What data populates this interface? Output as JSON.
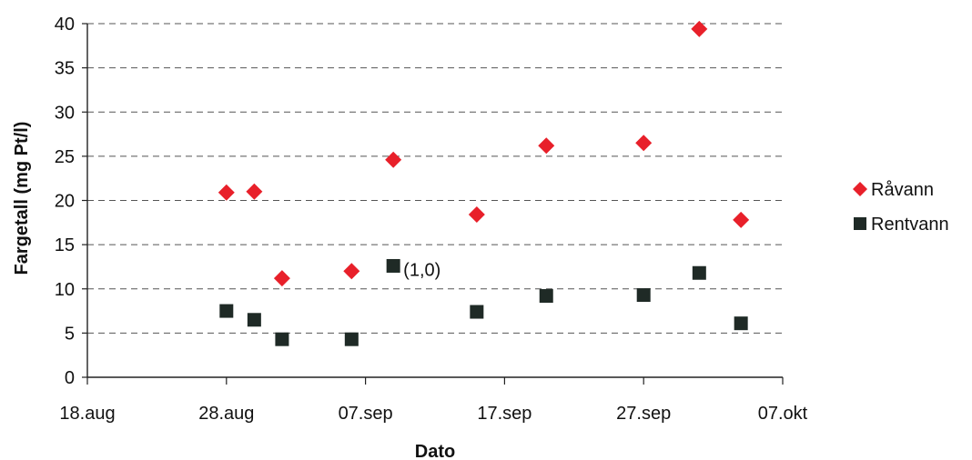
{
  "chart_data": {
    "type": "scatter",
    "title": "",
    "xlabel": "Dato",
    "ylabel": "Fargetall (mg Pt/l)",
    "xlim": [
      "2006-08-18",
      "2006-10-07"
    ],
    "ylim": [
      0,
      40
    ],
    "x_ticks": [
      "2006-08-18",
      "2006-08-28",
      "2006-09-07",
      "2006-09-17",
      "2006-09-27",
      "2006-10-07"
    ],
    "x_tick_labels": [
      "18.aug",
      "28.aug",
      "07.sep",
      "17.sep",
      "27.sep",
      "07.okt"
    ],
    "y_ticks": [
      0,
      5,
      10,
      15,
      20,
      25,
      30,
      35,
      40
    ],
    "grid": "horizontal dashed",
    "legend_position": "right",
    "series": [
      {
        "name": "Råvann",
        "marker": "diamond",
        "color": "#e8202a",
        "points": [
          {
            "x": "2006-08-28",
            "y": 20.9
          },
          {
            "x": "2006-08-30",
            "y": 21.0
          },
          {
            "x": "2006-09-01",
            "y": 11.2
          },
          {
            "x": "2006-09-06",
            "y": 12.0
          },
          {
            "x": "2006-09-09",
            "y": 24.6
          },
          {
            "x": "2006-09-15",
            "y": 18.4
          },
          {
            "x": "2006-09-20",
            "y": 26.2
          },
          {
            "x": "2006-09-27",
            "y": 26.5
          },
          {
            "x": "2006-10-01",
            "y": 39.4
          },
          {
            "x": "2006-10-04",
            "y": 17.8
          }
        ]
      },
      {
        "name": "Rentvann",
        "marker": "square",
        "color": "#1f2a26",
        "points": [
          {
            "x": "2006-08-28",
            "y": 7.5
          },
          {
            "x": "2006-08-30",
            "y": 6.5
          },
          {
            "x": "2006-09-01",
            "y": 4.3
          },
          {
            "x": "2006-09-06",
            "y": 4.3
          },
          {
            "x": "2006-09-09",
            "y": 12.6
          },
          {
            "x": "2006-09-15",
            "y": 7.4
          },
          {
            "x": "2006-09-20",
            "y": 9.2
          },
          {
            "x": "2006-09-27",
            "y": 9.3
          },
          {
            "x": "2006-10-01",
            "y": 11.8
          },
          {
            "x": "2006-10-04",
            "y": 6.1
          }
        ]
      }
    ],
    "annotations": [
      {
        "text": "(1,0)",
        "series": "Rentvann",
        "x": "2006-09-09",
        "y": 12.6
      }
    ]
  }
}
